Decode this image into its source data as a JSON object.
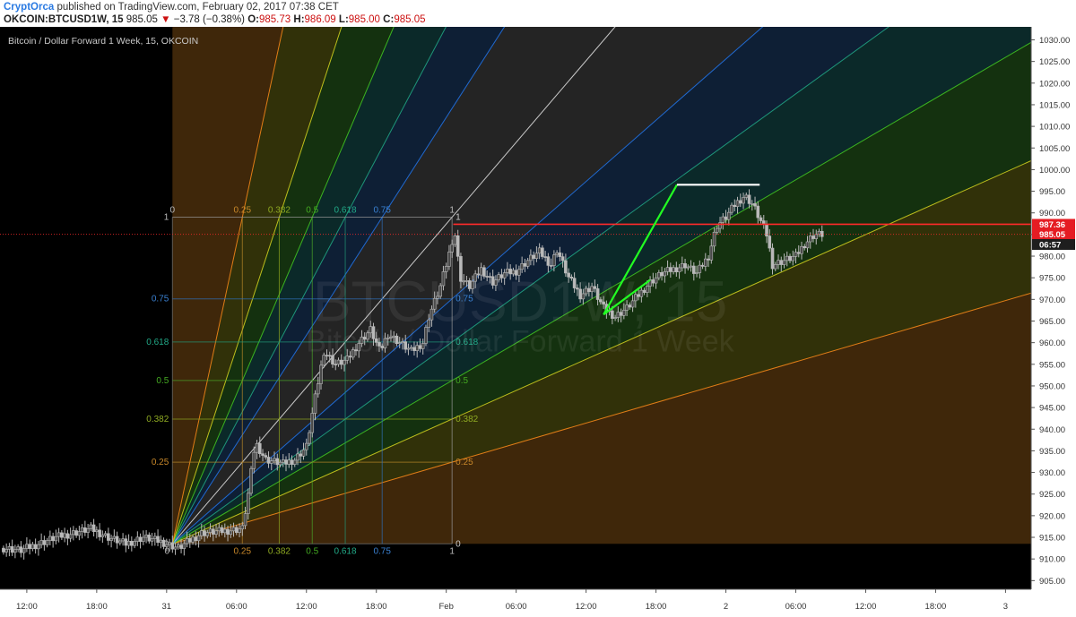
{
  "header": {
    "author": "CryptOrca",
    "published_text": "published on TradingView.com, February 02, 2017 07:38 CET",
    "symbol": "OKCOIN:BTCUSD1W, 15",
    "last": "985.05",
    "change_arrow": "▼",
    "change": "−3.78 (−0.38%)",
    "o_label": "O:",
    "o_value": "985.73",
    "h_label": "H:",
    "h_value": "986.09",
    "l_label": "L:",
    "l_value": "985.00",
    "c_label": "C:",
    "c_value": "985.05"
  },
  "legend": "Bitcoin / Dollar Forward 1 Week, 15, OKCOIN",
  "watermark": {
    "symbol": "BTCUSD1W, 15",
    "description": "Bitcoin / Dollar Forward 1 Week"
  },
  "colors": {
    "background": "#000000",
    "candle": "#b9b9b9",
    "red_line": "#ff2a2a",
    "green_pen": "#22ff22",
    "white_line": "#ffffff",
    "price_box_red": "#e51c23",
    "price_box_dark": "#1e1e1e"
  },
  "chart_data": {
    "type": "candlestick",
    "y_ticks": [
      "1030.00",
      "1025.00",
      "1020.00",
      "1015.00",
      "1010.00",
      "1005.00",
      "1000.00",
      "995.00",
      "990.00",
      "985.00",
      "980.00",
      "975.00",
      "970.00",
      "965.00",
      "960.00",
      "955.00",
      "950.00",
      "945.00",
      "940.00",
      "935.00",
      "930.00",
      "925.00",
      "920.00",
      "915.00",
      "910.00",
      "905.00"
    ],
    "x_ticks": [
      {
        "label": "12:00",
        "x_hour": 2
      },
      {
        "label": "18:00",
        "x_hour": 8
      },
      {
        "label": "31",
        "x_hour": 14
      },
      {
        "label": "06:00",
        "x_hour": 20
      },
      {
        "label": "12:00",
        "x_hour": 26
      },
      {
        "label": "18:00",
        "x_hour": 32
      },
      {
        "label": "Feb",
        "x_hour": 38
      },
      {
        "label": "06:00",
        "x_hour": 44
      },
      {
        "label": "12:00",
        "x_hour": 50
      },
      {
        "label": "18:00",
        "x_hour": 56
      },
      {
        "label": "2",
        "x_hour": 62
      },
      {
        "label": "06:00",
        "x_hour": 68
      },
      {
        "label": "12:00",
        "x_hour": 74
      },
      {
        "label": "18:00",
        "x_hour": 80
      },
      {
        "label": "3",
        "x_hour": 86
      }
    ],
    "price_labels": [
      {
        "value": "987.36",
        "price": 987.36,
        "style": "red"
      },
      {
        "value": "985.05",
        "price": 985.05,
        "style": "red"
      },
      {
        "value": "06:57",
        "price": 982.7,
        "style": "dark"
      }
    ],
    "close_series": [
      [
        0,
        912.5
      ],
      [
        1.5,
        912.0
      ],
      [
        3,
        913.5
      ],
      [
        4.5,
        915.0
      ],
      [
        6,
        916.0
      ],
      [
        7.5,
        917.0
      ],
      [
        9,
        915.0
      ],
      [
        10.5,
        913.5
      ],
      [
        12,
        915.0
      ],
      [
        13.5,
        914.0
      ],
      [
        15,
        912.5
      ],
      [
        17,
        916.0
      ],
      [
        19,
        916.5
      ],
      [
        20.5,
        917.0
      ],
      [
        21,
        925.0
      ],
      [
        21.6,
        937.0
      ],
      [
        22.5,
        933.0
      ],
      [
        24,
        932.0
      ],
      [
        25,
        933.0
      ],
      [
        26,
        936.0
      ],
      [
        26.8,
        948.0
      ],
      [
        27.5,
        958.0
      ],
      [
        28.5,
        955.0
      ],
      [
        29.5,
        956.0
      ],
      [
        30.5,
        960.0
      ],
      [
        31.5,
        963.0
      ],
      [
        32.3,
        958.0
      ],
      [
        33,
        962.0
      ],
      [
        34,
        960.0
      ],
      [
        35,
        958.0
      ],
      [
        36,
        960.0
      ],
      [
        36.5,
        966.0
      ],
      [
        37.5,
        973.0
      ],
      [
        38.2,
        980.0
      ],
      [
        38.7,
        986.0
      ],
      [
        39.2,
        975.0
      ],
      [
        40,
        973.0
      ],
      [
        41,
        977.0
      ],
      [
        42,
        974.0
      ],
      [
        43,
        976.0
      ],
      [
        44,
        976.5
      ],
      [
        45,
        979.0
      ],
      [
        46,
        981.0
      ],
      [
        47,
        978.0
      ],
      [
        47.5,
        981.5
      ],
      [
        48.5,
        975.0
      ],
      [
        49.5,
        971.0
      ],
      [
        50.5,
        973.0
      ],
      [
        51.5,
        968.0
      ],
      [
        52.5,
        966.0
      ],
      [
        53.5,
        968.0
      ],
      [
        54.5,
        971.0
      ],
      [
        55.5,
        974.0
      ],
      [
        56.5,
        976.0
      ],
      [
        57.5,
        977.0
      ],
      [
        58.5,
        978.0
      ],
      [
        59.5,
        976.0
      ],
      [
        60.5,
        980.0
      ],
      [
        61.2,
        987.0
      ],
      [
        62,
        989.0
      ],
      [
        62.8,
        992.0
      ],
      [
        63.6,
        994.0
      ],
      [
        64.3,
        992.0
      ],
      [
        65,
        988.0
      ],
      [
        65.5,
        985.0
      ],
      [
        66,
        978.0
      ],
      [
        67,
        979.0
      ],
      [
        68,
        980.0
      ],
      [
        68.8,
        983.0
      ],
      [
        69.6,
        985.0
      ],
      [
        70.3,
        985.05
      ]
    ],
    "gann_fan": {
      "origin": {
        "x_hour": 14.5,
        "price": 913.5
      },
      "unit": {
        "x_hour": 38.5,
        "price": 989.0
      },
      "levels": [
        "0",
        "0.25",
        "0.382",
        "0.5",
        "0.618",
        "0.75",
        "1"
      ],
      "grid_levels": [
        "0",
        "0.25",
        "0.382",
        "0.5",
        "0.618",
        "0.75",
        "1"
      ],
      "left_labels": [
        "1",
        "0.75",
        "0.618",
        "0.5",
        "0.382",
        "0.25",
        "0"
      ],
      "bottom_labels": [
        "0",
        "0.25",
        "0.382",
        "0.5",
        "0.618",
        "0.75",
        "1"
      ]
    },
    "horizontal_line": {
      "price": 987.36
    },
    "annotations": [
      {
        "type": "trend_line",
        "color": "green",
        "points": [
          [
            51.5,
            966.5
          ],
          [
            57.8,
            996.5
          ]
        ]
      },
      {
        "type": "trend_line",
        "color": "green",
        "points": [
          [
            51.5,
            966.5
          ],
          [
            55.5,
            974.5
          ]
        ]
      },
      {
        "type": "horizontal_segment",
        "color": "white",
        "points": [
          [
            57.8,
            996.5
          ],
          [
            64.9,
            996.5
          ]
        ]
      }
    ],
    "y_range": [
      903,
      1033
    ],
    "x_range": [
      -0.3,
      88.2
    ],
    "grid": false
  }
}
